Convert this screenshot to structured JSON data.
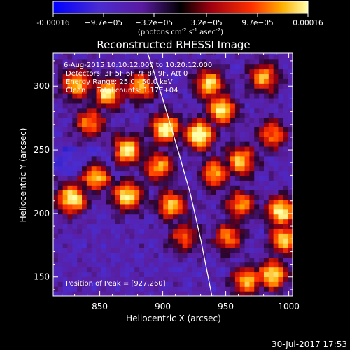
{
  "colorbar": {
    "tick_labels": [
      "-0.00016",
      "−9.7e−05",
      "−3.2e−05",
      "3.2e−05",
      "9.7e−05",
      "0.00016"
    ],
    "units_main": "(photons cm",
    "units_sup1": "-2",
    "units_mid1": " s",
    "units_sup2": "-1",
    "units_mid2": " asec",
    "units_sup3": "-2",
    "units_end": ")",
    "min": -0.00016,
    "max": 0.00016
  },
  "chart_data": {
    "type": "heatmap",
    "title": "Reconstructed RHESSI Image",
    "xlabel": "Heliocentric X (arcsec)",
    "ylabel": "Heliocentric Y (arcsec)",
    "xlim": [
      813,
      1003
    ],
    "ylim": [
      135,
      326
    ],
    "x_ticks": [
      850,
      900,
      950,
      1000
    ],
    "y_ticks": [
      150,
      200,
      250,
      300
    ],
    "x_tick_labels": [
      "850",
      "900",
      "950",
      "1000"
    ],
    "y_tick_labels": [
      "150",
      "200",
      "250",
      "300"
    ],
    "annotations": [
      "6-Aug-2015 10:10:12.000 to 10:20:12.000",
      "Detectors: 3F 5F 6F 7F 8F 9F, Att 0",
      "Energy Range: 25.0 - 50.0 keV",
      "Clean     Total counts: 1.17E+04"
    ],
    "peak_label": "Position of Peak = [927,260]",
    "peak": [
      927,
      260
    ],
    "limb_curve": [
      [
        888,
        326
      ],
      [
        900,
        290
      ],
      [
        912,
        250
      ],
      [
        922,
        215
      ],
      [
        930,
        180
      ],
      [
        936,
        150
      ],
      [
        939,
        135
      ]
    ],
    "bright_regions": [
      {
        "x": 830,
        "y": 300,
        "level": 0.75
      },
      {
        "x": 855,
        "y": 293,
        "level": 0.85
      },
      {
        "x": 880,
        "y": 298,
        "level": 0.7
      },
      {
        "x": 900,
        "y": 265,
        "level": 0.9
      },
      {
        "x": 870,
        "y": 248,
        "level": 0.85
      },
      {
        "x": 845,
        "y": 228,
        "level": 0.8
      },
      {
        "x": 895,
        "y": 235,
        "level": 0.7
      },
      {
        "x": 870,
        "y": 212,
        "level": 0.85
      },
      {
        "x": 826,
        "y": 210,
        "level": 0.9
      },
      {
        "x": 905,
        "y": 205,
        "level": 0.75
      },
      {
        "x": 927,
        "y": 260,
        "level": 1.0
      },
      {
        "x": 945,
        "y": 280,
        "level": 0.85
      },
      {
        "x": 935,
        "y": 300,
        "level": 0.8
      },
      {
        "x": 960,
        "y": 240,
        "level": 0.75
      },
      {
        "x": 940,
        "y": 230,
        "level": 0.7
      },
      {
        "x": 978,
        "y": 305,
        "level": 0.7
      },
      {
        "x": 985,
        "y": 260,
        "level": 0.6
      },
      {
        "x": 960,
        "y": 205,
        "level": 0.65
      },
      {
        "x": 950,
        "y": 180,
        "level": 0.6
      },
      {
        "x": 992,
        "y": 200,
        "level": 0.9
      },
      {
        "x": 995,
        "y": 178,
        "level": 0.8
      },
      {
        "x": 985,
        "y": 150,
        "level": 0.85
      },
      {
        "x": 965,
        "y": 145,
        "level": 0.75
      },
      {
        "x": 840,
        "y": 270,
        "level": 0.65
      },
      {
        "x": 915,
        "y": 180,
        "level": 0.55
      }
    ]
  },
  "footer": {
    "timestamp": "30-Jul-2017 17:53"
  }
}
